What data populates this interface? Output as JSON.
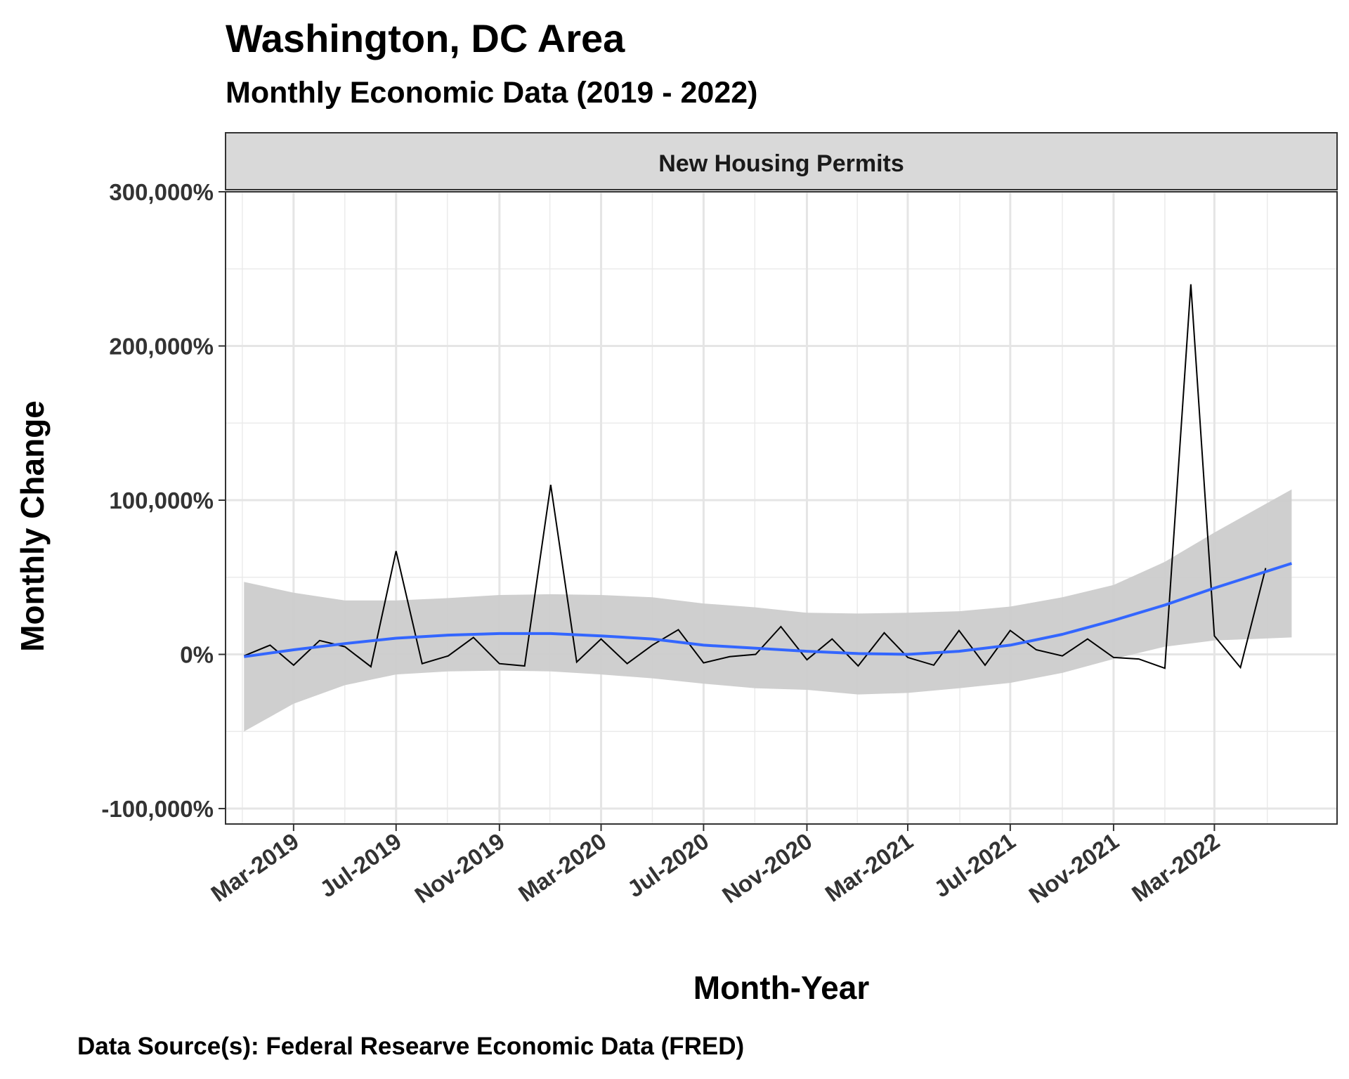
{
  "header": {
    "title": "Washington, DC Area",
    "subtitle": "Monthly Economic Data (2019 - 2022)"
  },
  "caption": "Data Source(s): Federal Researve Economic Data (FRED)",
  "chart_data": {
    "type": "line",
    "facet_label": "New Housing Permits",
    "xlabel": "Month-Year",
    "ylabel": "Monthly Change",
    "x_tick_labels": [
      "Mar-2019",
      "Jul-2019",
      "Nov-2019",
      "Mar-2020",
      "Jul-2020",
      "Nov-2020",
      "Mar-2021",
      "Jul-2021",
      "Nov-2021",
      "Mar-2022"
    ],
    "y_tick_labels": [
      "-100,000%",
      "0%",
      "100,000%",
      "200,000%",
      "300,000%"
    ],
    "ylim": [
      -110000,
      300000
    ],
    "xlim": [
      "2018-12-10",
      "2022-07-25"
    ],
    "grid": true,
    "colors": {
      "series": "#000000",
      "smooth": "#3366ff",
      "ribbon": "#cccccc",
      "strip": "#d9d9d9",
      "grid": "#e5e5e5"
    },
    "series": [
      {
        "x": [
          "2019-01",
          "2019-02",
          "2019-03",
          "2019-04",
          "2019-05",
          "2019-06",
          "2019-07",
          "2019-08",
          "2019-09",
          "2019-10",
          "2019-11",
          "2019-12",
          "2020-01",
          "2020-02",
          "2020-03",
          "2020-04",
          "2020-05",
          "2020-06",
          "2020-07",
          "2020-08",
          "2020-09",
          "2020-10",
          "2020-11",
          "2020-12",
          "2021-01",
          "2021-02",
          "2021-03",
          "2021-04",
          "2021-05",
          "2021-06",
          "2021-07",
          "2021-08",
          "2021-09",
          "2021-10",
          "2021-11",
          "2021-12",
          "2022-01",
          "2022-02",
          "2022-03",
          "2022-04",
          "2022-05",
          "2022-06"
        ],
        "values": [
          -1000,
          6000,
          -7000,
          9000,
          5000,
          -8000,
          67000,
          -6000,
          -1000,
          11000,
          -6000,
          -7500,
          110000,
          -5000,
          10000,
          -6000,
          6000,
          16000,
          -5500,
          -1500,
          0,
          18000,
          -3500,
          10000,
          -7500,
          14000,
          -2000,
          -7000,
          15500,
          -7000,
          15500,
          3000,
          -1000,
          10000,
          -2000,
          -3000,
          -9000,
          240000,
          12000,
          -8500,
          56000,
          null
        ]
      }
    ],
    "smooth": {
      "x": [
        "2019-01",
        "2019-03",
        "2019-05",
        "2019-07",
        "2019-09",
        "2019-11",
        "2020-01",
        "2020-03",
        "2020-05",
        "2020-07",
        "2020-09",
        "2020-11",
        "2021-01",
        "2021-03",
        "2021-05",
        "2021-07",
        "2021-09",
        "2021-11",
        "2022-01",
        "2022-03",
        "2022-06"
      ],
      "fit": [
        -1500,
        3000,
        7000,
        10500,
        12500,
        13500,
        13500,
        12000,
        10000,
        6000,
        4000,
        2000,
        500,
        0,
        2000,
        6000,
        13000,
        22000,
        32000,
        43000,
        59000
      ],
      "lower": [
        -50000,
        -32000,
        -20000,
        -13000,
        -11000,
        -10500,
        -11000,
        -13000,
        -15500,
        -19000,
        -22000,
        -23000,
        -26000,
        -25000,
        -22000,
        -18500,
        -12000,
        -3000,
        5000,
        9000,
        11000
      ],
      "upper": [
        47000,
        40000,
        35000,
        35000,
        36500,
        38500,
        39000,
        38500,
        37000,
        33000,
        30500,
        27000,
        26500,
        27000,
        28000,
        31000,
        37000,
        45000,
        60000,
        79000,
        107000
      ]
    }
  }
}
